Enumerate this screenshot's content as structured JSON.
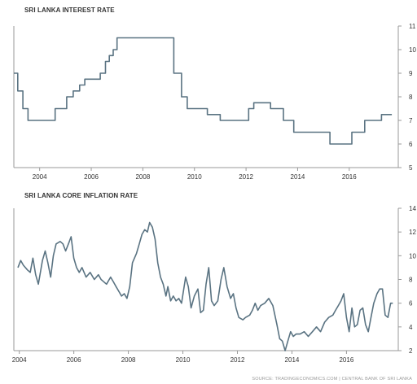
{
  "source_text": "SOURCE: TRADINGECONOMICS.COM | CENTRAL BANK OF SRI LANKA",
  "colors": {
    "line": "#5a7382",
    "frame": "#9a9a9a",
    "text": "#333333"
  },
  "chart_data": [
    {
      "type": "line",
      "title": "SRI LANKA INTEREST RATE",
      "xlim": [
        2003.0,
        2017.9
      ],
      "ylim": [
        5,
        11
      ],
      "xticks": [
        2004,
        2006,
        2008,
        2010,
        2012,
        2014,
        2016
      ],
      "yticks": [
        5,
        6,
        7,
        8,
        9,
        10,
        11
      ],
      "step": true,
      "points": [
        [
          2003.0,
          9.0
        ],
        [
          2003.15,
          9.0
        ],
        [
          2003.15,
          8.25
        ],
        [
          2003.35,
          8.25
        ],
        [
          2003.35,
          7.5
        ],
        [
          2003.55,
          7.5
        ],
        [
          2003.55,
          7.0
        ],
        [
          2004.6,
          7.0
        ],
        [
          2004.6,
          7.5
        ],
        [
          2005.05,
          7.5
        ],
        [
          2005.05,
          8.0
        ],
        [
          2005.3,
          8.0
        ],
        [
          2005.3,
          8.25
        ],
        [
          2005.55,
          8.25
        ],
        [
          2005.55,
          8.5
        ],
        [
          2005.75,
          8.5
        ],
        [
          2005.75,
          8.75
        ],
        [
          2006.35,
          8.75
        ],
        [
          2006.35,
          9.0
        ],
        [
          2006.55,
          9.0
        ],
        [
          2006.55,
          9.5
        ],
        [
          2006.7,
          9.5
        ],
        [
          2006.7,
          9.75
        ],
        [
          2006.85,
          9.75
        ],
        [
          2006.85,
          10.0
        ],
        [
          2007.0,
          10.0
        ],
        [
          2007.0,
          10.5
        ],
        [
          2009.2,
          10.5
        ],
        [
          2009.2,
          9.0
        ],
        [
          2009.5,
          9.0
        ],
        [
          2009.5,
          8.0
        ],
        [
          2009.72,
          8.0
        ],
        [
          2009.72,
          7.5
        ],
        [
          2010.5,
          7.5
        ],
        [
          2010.5,
          7.25
        ],
        [
          2011.0,
          7.25
        ],
        [
          2011.0,
          7.0
        ],
        [
          2012.1,
          7.0
        ],
        [
          2012.1,
          7.5
        ],
        [
          2012.3,
          7.5
        ],
        [
          2012.3,
          7.75
        ],
        [
          2012.95,
          7.75
        ],
        [
          2012.95,
          7.5
        ],
        [
          2013.45,
          7.5
        ],
        [
          2013.45,
          7.0
        ],
        [
          2013.85,
          7.0
        ],
        [
          2013.85,
          6.5
        ],
        [
          2015.25,
          6.5
        ],
        [
          2015.25,
          6.0
        ],
        [
          2016.1,
          6.0
        ],
        [
          2016.1,
          6.5
        ],
        [
          2016.6,
          6.5
        ],
        [
          2016.6,
          7.0
        ],
        [
          2017.25,
          7.0
        ],
        [
          2017.25,
          7.25
        ],
        [
          2017.65,
          7.25
        ]
      ]
    },
    {
      "type": "line",
      "title": "SRI LANKA CORE INFLATION RATE",
      "xlim": [
        2003.8,
        2017.9
      ],
      "ylim": [
        2,
        14
      ],
      "xticks": [
        2004,
        2006,
        2008,
        2010,
        2012,
        2014,
        2016
      ],
      "yticks": [
        2,
        4,
        6,
        8,
        10,
        12,
        14
      ],
      "step": false,
      "points": [
        [
          2003.95,
          9.0
        ],
        [
          2004.05,
          9.6
        ],
        [
          2004.15,
          9.2
        ],
        [
          2004.3,
          8.8
        ],
        [
          2004.4,
          8.6
        ],
        [
          2004.5,
          9.8
        ],
        [
          2004.6,
          8.4
        ],
        [
          2004.7,
          7.6
        ],
        [
          2004.85,
          9.6
        ],
        [
          2004.95,
          10.4
        ],
        [
          2005.05,
          9.4
        ],
        [
          2005.15,
          8.2
        ],
        [
          2005.25,
          10.0
        ],
        [
          2005.35,
          11.0
        ],
        [
          2005.5,
          11.2
        ],
        [
          2005.6,
          11.0
        ],
        [
          2005.7,
          10.4
        ],
        [
          2005.8,
          11.0
        ],
        [
          2005.9,
          11.6
        ],
        [
          2006.0,
          9.8
        ],
        [
          2006.1,
          9.0
        ],
        [
          2006.2,
          8.6
        ],
        [
          2006.3,
          9.0
        ],
        [
          2006.45,
          8.2
        ],
        [
          2006.6,
          8.6
        ],
        [
          2006.75,
          8.0
        ],
        [
          2006.9,
          8.4
        ],
        [
          2007.0,
          8.0
        ],
        [
          2007.2,
          7.6
        ],
        [
          2007.35,
          8.2
        ],
        [
          2007.45,
          7.8
        ],
        [
          2007.55,
          7.4
        ],
        [
          2007.65,
          7.0
        ],
        [
          2007.75,
          6.6
        ],
        [
          2007.85,
          6.8
        ],
        [
          2007.95,
          6.4
        ],
        [
          2008.05,
          7.4
        ],
        [
          2008.15,
          9.4
        ],
        [
          2008.3,
          10.2
        ],
        [
          2008.4,
          11.0
        ],
        [
          2008.5,
          11.8
        ],
        [
          2008.6,
          12.2
        ],
        [
          2008.7,
          12.0
        ],
        [
          2008.78,
          12.8
        ],
        [
          2008.88,
          12.4
        ],
        [
          2008.98,
          11.4
        ],
        [
          2009.08,
          9.4
        ],
        [
          2009.18,
          8.2
        ],
        [
          2009.28,
          7.6
        ],
        [
          2009.38,
          6.6
        ],
        [
          2009.45,
          7.4
        ],
        [
          2009.55,
          6.2
        ],
        [
          2009.65,
          6.6
        ],
        [
          2009.75,
          6.2
        ],
        [
          2009.85,
          6.4
        ],
        [
          2009.95,
          6.0
        ],
        [
          2010.1,
          8.2
        ],
        [
          2010.2,
          7.4
        ],
        [
          2010.3,
          5.6
        ],
        [
          2010.42,
          6.6
        ],
        [
          2010.55,
          7.2
        ],
        [
          2010.65,
          5.2
        ],
        [
          2010.75,
          5.4
        ],
        [
          2010.85,
          7.6
        ],
        [
          2010.95,
          9.0
        ],
        [
          2011.05,
          6.2
        ],
        [
          2011.15,
          5.8
        ],
        [
          2011.28,
          6.2
        ],
        [
          2011.4,
          8.0
        ],
        [
          2011.5,
          9.0
        ],
        [
          2011.62,
          7.4
        ],
        [
          2011.75,
          6.4
        ],
        [
          2011.85,
          6.8
        ],
        [
          2011.95,
          5.6
        ],
        [
          2012.05,
          4.8
        ],
        [
          2012.2,
          4.6
        ],
        [
          2012.3,
          4.8
        ],
        [
          2012.45,
          5.0
        ],
        [
          2012.55,
          5.4
        ],
        [
          2012.65,
          6.0
        ],
        [
          2012.75,
          5.4
        ],
        [
          2012.85,
          5.8
        ],
        [
          2013.0,
          6.0
        ],
        [
          2013.15,
          6.4
        ],
        [
          2013.3,
          5.8
        ],
        [
          2013.45,
          4.2
        ],
        [
          2013.55,
          3.0
        ],
        [
          2013.65,
          2.8
        ],
        [
          2013.75,
          2.0
        ],
        [
          2013.85,
          2.8
        ],
        [
          2013.95,
          3.6
        ],
        [
          2014.05,
          3.2
        ],
        [
          2014.15,
          3.4
        ],
        [
          2014.3,
          3.4
        ],
        [
          2014.45,
          3.6
        ],
        [
          2014.6,
          3.2
        ],
        [
          2014.75,
          3.6
        ],
        [
          2014.9,
          4.0
        ],
        [
          2015.05,
          3.6
        ],
        [
          2015.2,
          4.4
        ],
        [
          2015.35,
          4.8
        ],
        [
          2015.5,
          5.0
        ],
        [
          2015.6,
          5.4
        ],
        [
          2015.7,
          5.8
        ],
        [
          2015.8,
          6.2
        ],
        [
          2015.9,
          6.8
        ],
        [
          2016.0,
          4.8
        ],
        [
          2016.1,
          3.6
        ],
        [
          2016.2,
          5.6
        ],
        [
          2016.3,
          4.0
        ],
        [
          2016.4,
          4.2
        ],
        [
          2016.5,
          5.4
        ],
        [
          2016.6,
          5.6
        ],
        [
          2016.7,
          4.2
        ],
        [
          2016.8,
          3.6
        ],
        [
          2016.9,
          4.8
        ],
        [
          2017.0,
          6.0
        ],
        [
          2017.12,
          6.8
        ],
        [
          2017.22,
          7.2
        ],
        [
          2017.32,
          7.2
        ],
        [
          2017.42,
          5.0
        ],
        [
          2017.52,
          4.8
        ],
        [
          2017.62,
          6.0
        ],
        [
          2017.7,
          6.0
        ]
      ]
    }
  ]
}
